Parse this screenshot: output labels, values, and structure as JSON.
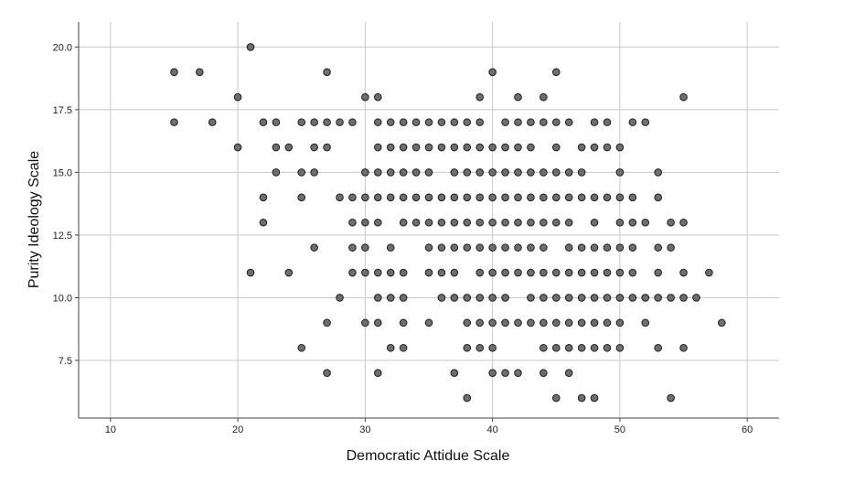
{
  "chart_data": {
    "type": "scatter",
    "title": "",
    "xlabel": "Democratic Attidue Scale",
    "ylabel": "Purity Ideology Scale",
    "xlim": [
      7.5,
      62.5
    ],
    "ylim": [
      5.2,
      21.0
    ],
    "xticks": [
      10,
      20,
      30,
      40,
      50,
      60
    ],
    "yticks": [
      7.5,
      10.0,
      12.5,
      15.0,
      17.5,
      20.0
    ],
    "xtick_labels": [
      "10",
      "20",
      "30",
      "40",
      "50",
      "60"
    ],
    "ytick_labels": [
      "7.5",
      "10.0",
      "12.5",
      "15.0",
      "17.5",
      "20.0"
    ],
    "grid": true,
    "legend": "none",
    "marker_color": "#6e6e6e",
    "marker_edge": "#1e1e1e",
    "points": [
      [
        21,
        20
      ],
      [
        15,
        19
      ],
      [
        17,
        19
      ],
      [
        27,
        19
      ],
      [
        40,
        19
      ],
      [
        45,
        19
      ],
      [
        20,
        18
      ],
      [
        30,
        18
      ],
      [
        31,
        18
      ],
      [
        39,
        18
      ],
      [
        42,
        18
      ],
      [
        44,
        18
      ],
      [
        55,
        18
      ],
      [
        15,
        17
      ],
      [
        18,
        17
      ],
      [
        22,
        17
      ],
      [
        23,
        17
      ],
      [
        25,
        17
      ],
      [
        26,
        17
      ],
      [
        27,
        17
      ],
      [
        28,
        17
      ],
      [
        29,
        17
      ],
      [
        31,
        17
      ],
      [
        32,
        17
      ],
      [
        33,
        17
      ],
      [
        34,
        17
      ],
      [
        35,
        17
      ],
      [
        36,
        17
      ],
      [
        37,
        17
      ],
      [
        38,
        17
      ],
      [
        39,
        17
      ],
      [
        41,
        17
      ],
      [
        42,
        17
      ],
      [
        43,
        17
      ],
      [
        44,
        17
      ],
      [
        45,
        17
      ],
      [
        46,
        17
      ],
      [
        48,
        17
      ],
      [
        49,
        17
      ],
      [
        51,
        17
      ],
      [
        52,
        17
      ],
      [
        20,
        16
      ],
      [
        23,
        16
      ],
      [
        24,
        16
      ],
      [
        26,
        16
      ],
      [
        27,
        16
      ],
      [
        31,
        16
      ],
      [
        32,
        16
      ],
      [
        33,
        16
      ],
      [
        34,
        16
      ],
      [
        35,
        16
      ],
      [
        36,
        16
      ],
      [
        37,
        16
      ],
      [
        38,
        16
      ],
      [
        39,
        16
      ],
      [
        40,
        16
      ],
      [
        41,
        16
      ],
      [
        42,
        16
      ],
      [
        43,
        16
      ],
      [
        45,
        16
      ],
      [
        47,
        16
      ],
      [
        48,
        16
      ],
      [
        49,
        16
      ],
      [
        50,
        16
      ],
      [
        23,
        15
      ],
      [
        25,
        15
      ],
      [
        26,
        15
      ],
      [
        30,
        15
      ],
      [
        31,
        15
      ],
      [
        32,
        15
      ],
      [
        33,
        15
      ],
      [
        34,
        15
      ],
      [
        35,
        15
      ],
      [
        37,
        15
      ],
      [
        38,
        15
      ],
      [
        39,
        15
      ],
      [
        40,
        15
      ],
      [
        41,
        15
      ],
      [
        42,
        15
      ],
      [
        43,
        15
      ],
      [
        44,
        15
      ],
      [
        45,
        15
      ],
      [
        46,
        15
      ],
      [
        47,
        15
      ],
      [
        50,
        15
      ],
      [
        53,
        15
      ],
      [
        22,
        14
      ],
      [
        25,
        14
      ],
      [
        28,
        14
      ],
      [
        29,
        14
      ],
      [
        30,
        14
      ],
      [
        31,
        14
      ],
      [
        32,
        14
      ],
      [
        33,
        14
      ],
      [
        34,
        14
      ],
      [
        35,
        14
      ],
      [
        36,
        14
      ],
      [
        37,
        14
      ],
      [
        38,
        14
      ],
      [
        39,
        14
      ],
      [
        40,
        14
      ],
      [
        41,
        14
      ],
      [
        42,
        14
      ],
      [
        43,
        14
      ],
      [
        44,
        14
      ],
      [
        45,
        14
      ],
      [
        46,
        14
      ],
      [
        47,
        14
      ],
      [
        48,
        14
      ],
      [
        49,
        14
      ],
      [
        50,
        14
      ],
      [
        51,
        14
      ],
      [
        53,
        14
      ],
      [
        22,
        13
      ],
      [
        29,
        13
      ],
      [
        30,
        13
      ],
      [
        31,
        13
      ],
      [
        33,
        13
      ],
      [
        34,
        13
      ],
      [
        35,
        13
      ],
      [
        36,
        13
      ],
      [
        37,
        13
      ],
      [
        38,
        13
      ],
      [
        39,
        13
      ],
      [
        40,
        13
      ],
      [
        41,
        13
      ],
      [
        42,
        13
      ],
      [
        43,
        13
      ],
      [
        44,
        13
      ],
      [
        45,
        13
      ],
      [
        46,
        13
      ],
      [
        48,
        13
      ],
      [
        50,
        13
      ],
      [
        51,
        13
      ],
      [
        52,
        13
      ],
      [
        54,
        13
      ],
      [
        55,
        13
      ],
      [
        26,
        12
      ],
      [
        29,
        12
      ],
      [
        30,
        12
      ],
      [
        32,
        12
      ],
      [
        35,
        12
      ],
      [
        36,
        12
      ],
      [
        37,
        12
      ],
      [
        38,
        12
      ],
      [
        39,
        12
      ],
      [
        40,
        12
      ],
      [
        41,
        12
      ],
      [
        42,
        12
      ],
      [
        43,
        12
      ],
      [
        44,
        12
      ],
      [
        46,
        12
      ],
      [
        47,
        12
      ],
      [
        48,
        12
      ],
      [
        49,
        12
      ],
      [
        50,
        12
      ],
      [
        51,
        12
      ],
      [
        53,
        12
      ],
      [
        54,
        12
      ],
      [
        21,
        11
      ],
      [
        24,
        11
      ],
      [
        29,
        11
      ],
      [
        30,
        11
      ],
      [
        31,
        11
      ],
      [
        32,
        11
      ],
      [
        33,
        11
      ],
      [
        35,
        11
      ],
      [
        36,
        11
      ],
      [
        37,
        11
      ],
      [
        39,
        11
      ],
      [
        40,
        11
      ],
      [
        41,
        11
      ],
      [
        42,
        11
      ],
      [
        43,
        11
      ],
      [
        44,
        11
      ],
      [
        45,
        11
      ],
      [
        46,
        11
      ],
      [
        47,
        11
      ],
      [
        48,
        11
      ],
      [
        49,
        11
      ],
      [
        50,
        11
      ],
      [
        51,
        11
      ],
      [
        53,
        11
      ],
      [
        55,
        11
      ],
      [
        57,
        11
      ],
      [
        28,
        10
      ],
      [
        31,
        10
      ],
      [
        32,
        10
      ],
      [
        33,
        10
      ],
      [
        36,
        10
      ],
      [
        37,
        10
      ],
      [
        38,
        10
      ],
      [
        39,
        10
      ],
      [
        40,
        10
      ],
      [
        41,
        10
      ],
      [
        43,
        10
      ],
      [
        44,
        10
      ],
      [
        45,
        10
      ],
      [
        46,
        10
      ],
      [
        47,
        10
      ],
      [
        48,
        10
      ],
      [
        49,
        10
      ],
      [
        50,
        10
      ],
      [
        51,
        10
      ],
      [
        52,
        10
      ],
      [
        53,
        10
      ],
      [
        54,
        10
      ],
      [
        55,
        10
      ],
      [
        56,
        10
      ],
      [
        27,
        9
      ],
      [
        30,
        9
      ],
      [
        31,
        9
      ],
      [
        33,
        9
      ],
      [
        35,
        9
      ],
      [
        38,
        9
      ],
      [
        39,
        9
      ],
      [
        40,
        9
      ],
      [
        41,
        9
      ],
      [
        42,
        9
      ],
      [
        43,
        9
      ],
      [
        44,
        9
      ],
      [
        45,
        9
      ],
      [
        46,
        9
      ],
      [
        47,
        9
      ],
      [
        48,
        9
      ],
      [
        49,
        9
      ],
      [
        50,
        9
      ],
      [
        52,
        9
      ],
      [
        58,
        9
      ],
      [
        25,
        8
      ],
      [
        32,
        8
      ],
      [
        33,
        8
      ],
      [
        38,
        8
      ],
      [
        39,
        8
      ],
      [
        40,
        8
      ],
      [
        44,
        8
      ],
      [
        45,
        8
      ],
      [
        46,
        8
      ],
      [
        47,
        8
      ],
      [
        48,
        8
      ],
      [
        49,
        8
      ],
      [
        50,
        8
      ],
      [
        53,
        8
      ],
      [
        55,
        8
      ],
      [
        27,
        7
      ],
      [
        31,
        7
      ],
      [
        37,
        7
      ],
      [
        40,
        7
      ],
      [
        41,
        7
      ],
      [
        42,
        7
      ],
      [
        44,
        7
      ],
      [
        46,
        7
      ],
      [
        38,
        6
      ],
      [
        45,
        6
      ],
      [
        47,
        6
      ],
      [
        48,
        6
      ],
      [
        54,
        6
      ]
    ]
  }
}
